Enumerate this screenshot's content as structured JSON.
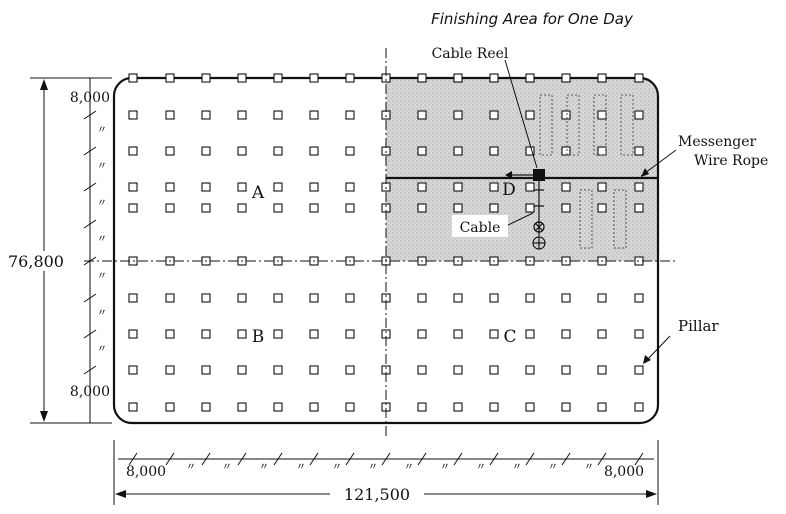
{
  "title": "Finishing Area for One Day",
  "labels": {
    "cable_reel": "Cable Reel",
    "messenger": "Messenger",
    "wire_rope": "Wire Rope",
    "cable": "Cable",
    "pillar": "Pillar"
  },
  "zones": {
    "a": "A",
    "b": "B",
    "c": "C",
    "d": "D"
  },
  "dimensions": {
    "height_total": "76,800",
    "width_total": "121,500",
    "spacing_top_left": "8,000",
    "spacing_bottom_left": "8,000",
    "spacing_bottom_row_left": "8,000",
    "spacing_bottom_row_right": "8,000",
    "repeat_mark": "〃"
  },
  "colors": {
    "line": "#111111",
    "shaded_area": "#cfcfcf",
    "background": "#ffffff"
  }
}
